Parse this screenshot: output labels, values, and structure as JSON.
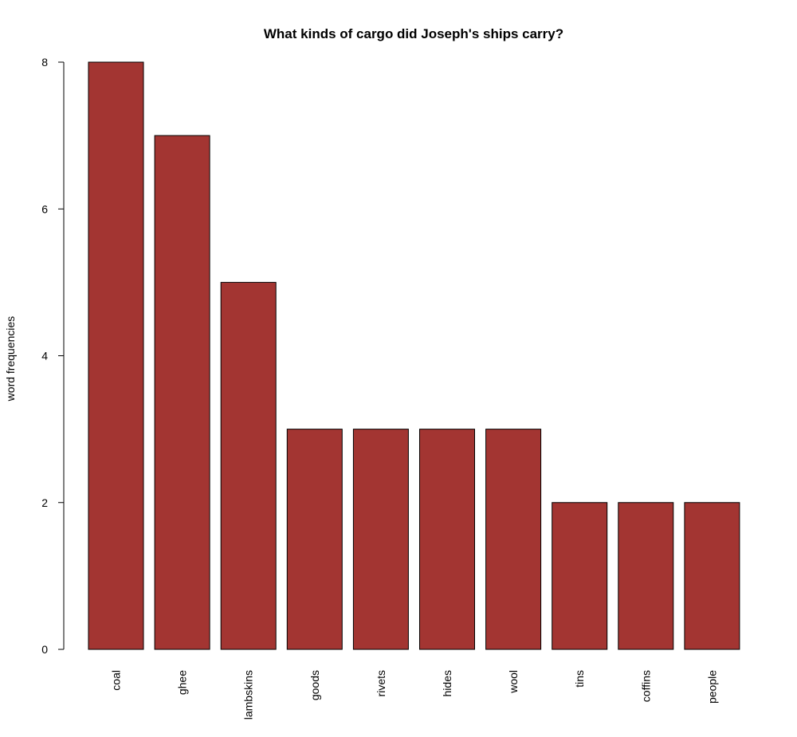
{
  "chart_data": {
    "type": "bar",
    "title": "What kinds of cargo did Joseph's ships carry?",
    "xlabel": "",
    "ylabel": "word frequencies",
    "categories": [
      "coal",
      "ghee",
      "lambskins",
      "goods",
      "rivets",
      "hides",
      "wool",
      "tins",
      "coffins",
      "people"
    ],
    "values": [
      8,
      7,
      5,
      3,
      3,
      3,
      3,
      2,
      2,
      2
    ],
    "ylim": [
      0,
      8
    ],
    "yticks": [
      0,
      2,
      4,
      6,
      8
    ],
    "bar_color": "#a33532",
    "bar_border_color": "#000000",
    "grid": false,
    "legend": "none"
  }
}
